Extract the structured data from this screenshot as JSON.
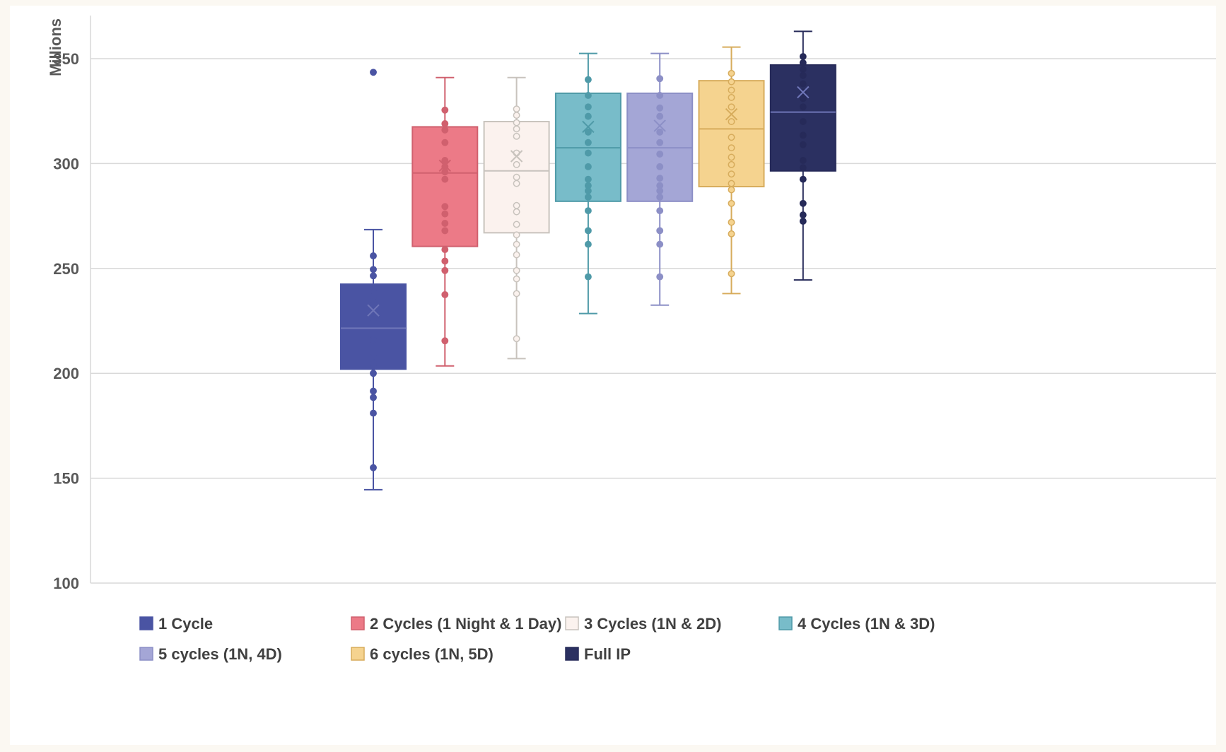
{
  "chart_data": {
    "type": "box",
    "title": "",
    "xlabel": "",
    "ylabel": "Millions",
    "ylim": [
      100,
      370
    ],
    "yticks": [
      100,
      150,
      200,
      250,
      300,
      350
    ],
    "grid": true,
    "legend_position": "bottom",
    "series": [
      {
        "name": "1 Cycle",
        "color": "#4a54a3",
        "fill": "#4a54a3",
        "marker_hollow": false,
        "min": 144.5,
        "q1": 202,
        "median": 221.5,
        "q3": 242.5,
        "max": 268.5,
        "mean": 230,
        "points": [
          343.5,
          256,
          249.5,
          246.5,
          240,
          236.5,
          233,
          229.5,
          226,
          216,
          209,
          205,
          203,
          200,
          191.5,
          188.5,
          181,
          155
        ]
      },
      {
        "name": "2 Cycles (1 Night & 1 Day)",
        "color": "#d0606e",
        "fill": "#ec7a87",
        "marker_hollow": false,
        "min": 203.5,
        "q1": 260.5,
        "median": 295.5,
        "q3": 317.5,
        "max": 341,
        "mean": 299,
        "points": [
          325.5,
          319,
          316,
          310,
          301.5,
          298.5,
          296,
          292.5,
          279.5,
          276,
          271.5,
          268,
          259,
          253.5,
          249,
          237.5,
          215.5
        ]
      },
      {
        "name": "3 Cycles (1N & 2D)",
        "color": "#c8c3bd",
        "fill": "#fbf2ee",
        "marker_hollow": true,
        "min": 207,
        "q1": 267,
        "median": 296.5,
        "q3": 320,
        "max": 341,
        "mean": 303.5,
        "points": [
          326,
          323,
          319.5,
          316.5,
          313,
          305,
          299.5,
          293.5,
          290.5,
          280,
          277,
          271,
          266,
          261.5,
          256.5,
          249,
          245,
          238,
          216.5
        ]
      },
      {
        "name": "4 Cycles (1N & 3D)",
        "color": "#4f9aa8",
        "fill": "#78bcc9",
        "marker_hollow": false,
        "min": 228.5,
        "q1": 282,
        "median": 307.5,
        "q3": 333.5,
        "max": 352.5,
        "mean": 317.5,
        "points": [
          340,
          332.5,
          327,
          322.5,
          315,
          310,
          305,
          298.5,
          292.5,
          289.5,
          287,
          284,
          277.5,
          268,
          261.5,
          246
        ]
      },
      {
        "name": "5 cycles (1N, 4D)",
        "color": "#8c8fc6",
        "fill": "#a4a6d6",
        "marker_hollow": false,
        "min": 232.5,
        "q1": 282,
        "median": 307.5,
        "q3": 333.5,
        "max": 352.5,
        "mean": 318,
        "points": [
          340.5,
          332.5,
          326.5,
          322.5,
          315,
          310,
          304.5,
          298.5,
          293,
          289.5,
          287,
          284,
          277.5,
          268,
          261.5,
          246
        ]
      },
      {
        "name": "6 cycles (1N, 5D)",
        "color": "#d7ac5c",
        "fill": "#f5d38f",
        "marker_hollow": true,
        "min": 238,
        "q1": 289,
        "median": 316.5,
        "q3": 339.5,
        "max": 355.5,
        "mean": 323.5,
        "points": [
          343,
          339,
          335,
          331.5,
          327,
          320,
          312.5,
          307.5,
          303,
          299.5,
          295,
          290.5,
          287.5,
          281,
          272,
          266.5,
          247.5
        ]
      },
      {
        "name": "Full IP",
        "color": "#262a59",
        "fill": "#2b3061",
        "marker_hollow": false,
        "min": 244.5,
        "q1": 296.5,
        "median": 324.5,
        "q3": 347,
        "max": 363,
        "mean": 334,
        "points": [
          351,
          348,
          345,
          342,
          338,
          334,
          331,
          327,
          320,
          313.5,
          309,
          301.5,
          298,
          292.5,
          281,
          275.5,
          272.5
        ]
      }
    ]
  }
}
